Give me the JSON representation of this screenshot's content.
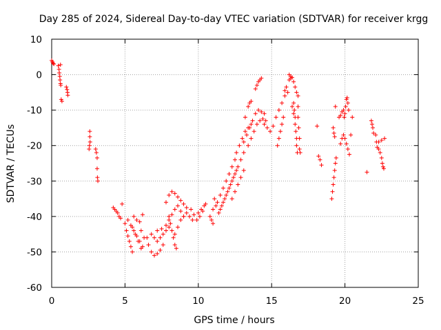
{
  "chart_data": {
    "type": "scatter",
    "title": "Day 285 of 2024, Sidereal Day-to-day VTEC variation (SDTVAR) for receiver krgg",
    "xlabel": "GPS time / hours",
    "ylabel": "SDTVAR / TECUs",
    "xlim": [
      0,
      25
    ],
    "ylim": [
      -60,
      10
    ],
    "xticks": [
      0,
      5,
      10,
      15,
      20,
      25
    ],
    "yticks": [
      10,
      0,
      -10,
      -20,
      -30,
      -40,
      -50,
      -60
    ],
    "xtick_labels": [
      "0",
      "5",
      "10",
      "15",
      "20",
      "25"
    ],
    "ytick_labels": [
      "10",
      "0",
      "-10",
      "-20",
      "-30",
      "-40",
      "-50",
      "-60"
    ],
    "grid": true,
    "marker": "+",
    "color": "#ff0000",
    "series": [
      {
        "name": "SDTVAR",
        "points": [
          [
            0.0,
            4.0
          ],
          [
            0.05,
            3.6
          ],
          [
            0.1,
            3.2
          ],
          [
            0.15,
            3.0
          ],
          [
            0.45,
            2.5
          ],
          [
            0.5,
            1.5
          ],
          [
            0.52,
            0.5
          ],
          [
            0.55,
            -0.5
          ],
          [
            0.57,
            -1.5
          ],
          [
            0.6,
            -2.5
          ],
          [
            0.62,
            -3.0
          ],
          [
            0.6,
            2.8
          ],
          [
            0.65,
            -7.0
          ],
          [
            0.7,
            -7.5
          ],
          [
            1.0,
            -3.5
          ],
          [
            1.05,
            -4.2
          ],
          [
            1.08,
            -5.0
          ],
          [
            1.1,
            -5.8
          ],
          [
            2.6,
            -16
          ],
          [
            2.6,
            -17.5
          ],
          [
            2.62,
            -19
          ],
          [
            2.58,
            -20
          ],
          [
            2.55,
            -21
          ],
          [
            3.0,
            -21.0
          ],
          [
            3.05,
            -22
          ],
          [
            3.1,
            -23.5
          ],
          [
            3.1,
            -26.5
          ],
          [
            3.12,
            -29
          ],
          [
            3.15,
            -30
          ],
          [
            4.2,
            -37.5
          ],
          [
            4.3,
            -38.0
          ],
          [
            4.4,
            -38.5
          ],
          [
            4.5,
            -39.0
          ],
          [
            4.6,
            -40.0
          ],
          [
            4.7,
            -40.5
          ],
          [
            4.8,
            -36.5
          ],
          [
            5.0,
            -42
          ],
          [
            5.1,
            -44
          ],
          [
            5.2,
            -45.5
          ],
          [
            5.3,
            -47
          ],
          [
            5.4,
            -48.5
          ],
          [
            5.5,
            -50
          ],
          [
            5.2,
            -41
          ],
          [
            5.4,
            -42.5
          ],
          [
            5.6,
            -44
          ],
          [
            5.8,
            -45.5
          ],
          [
            6.0,
            -47
          ],
          [
            6.2,
            -48.5
          ],
          [
            5.5,
            -43
          ],
          [
            5.7,
            -45
          ],
          [
            5.9,
            -47
          ],
          [
            6.1,
            -49
          ],
          [
            5.6,
            -40
          ],
          [
            5.8,
            -41
          ],
          [
            6.0,
            -41.5
          ],
          [
            6.2,
            -39.5
          ],
          [
            6.1,
            -44
          ],
          [
            6.3,
            -46
          ],
          [
            6.5,
            -46
          ],
          [
            6.6,
            -48
          ],
          [
            6.8,
            -50
          ],
          [
            7.0,
            -51
          ],
          [
            7.2,
            -50.5
          ],
          [
            7.4,
            -49.5
          ],
          [
            7.6,
            -48
          ],
          [
            6.8,
            -45
          ],
          [
            7.0,
            -46
          ],
          [
            7.2,
            -47
          ],
          [
            7.4,
            -46
          ],
          [
            7.6,
            -45
          ],
          [
            7.8,
            -44
          ],
          [
            8.0,
            -43
          ],
          [
            7.2,
            -44
          ],
          [
            7.5,
            -43.5
          ],
          [
            7.8,
            -42.5
          ],
          [
            8.0,
            -41
          ],
          [
            8.2,
            -39.5
          ],
          [
            8.4,
            -38
          ],
          [
            7.8,
            -36
          ],
          [
            8.0,
            -34
          ],
          [
            8.2,
            -33
          ],
          [
            8.4,
            -33.5
          ],
          [
            8.6,
            -34.5
          ],
          [
            8.8,
            -35.5
          ],
          [
            9.0,
            -36.5
          ],
          [
            9.2,
            -37.5
          ],
          [
            8.0,
            -40
          ],
          [
            8.1,
            -42
          ],
          [
            8.2,
            -44
          ],
          [
            8.3,
            -46
          ],
          [
            8.4,
            -48
          ],
          [
            8.5,
            -49
          ],
          [
            8.4,
            -45
          ],
          [
            8.6,
            -43
          ],
          [
            8.8,
            -41
          ],
          [
            9.0,
            -40
          ],
          [
            8.6,
            -37
          ],
          [
            8.8,
            -38.5
          ],
          [
            9.0,
            -40
          ],
          [
            9.2,
            -39
          ],
          [
            9.4,
            -40
          ],
          [
            9.6,
            -41
          ],
          [
            9.5,
            -38
          ],
          [
            9.7,
            -39.5
          ],
          [
            9.9,
            -41
          ],
          [
            10.1,
            -40
          ],
          [
            10.3,
            -38.5
          ],
          [
            10.0,
            -39
          ],
          [
            10.2,
            -38
          ],
          [
            10.4,
            -37
          ],
          [
            10.5,
            -36.5
          ],
          [
            10.8,
            -40
          ],
          [
            10.9,
            -41
          ],
          [
            11.0,
            -42
          ],
          [
            11.0,
            -38
          ],
          [
            11.2,
            -37
          ],
          [
            11.1,
            -35
          ],
          [
            11.3,
            -36
          ],
          [
            11.5,
            -34
          ],
          [
            11.7,
            -32
          ],
          [
            11.9,
            -30
          ],
          [
            12.1,
            -28
          ],
          [
            12.3,
            -26
          ],
          [
            12.5,
            -24
          ],
          [
            11.5,
            -38
          ],
          [
            11.7,
            -36
          ],
          [
            11.9,
            -34
          ],
          [
            12.1,
            -32
          ],
          [
            12.3,
            -30
          ],
          [
            12.5,
            -28
          ],
          [
            12.7,
            -26
          ],
          [
            12.9,
            -24
          ],
          [
            13.1,
            -22
          ],
          [
            11.4,
            -39
          ],
          [
            11.6,
            -37
          ],
          [
            11.8,
            -35
          ],
          [
            12.0,
            -33
          ],
          [
            12.2,
            -31
          ],
          [
            12.4,
            -29
          ],
          [
            12.6,
            -27
          ],
          [
            12.3,
            -35
          ],
          [
            12.5,
            -33
          ],
          [
            12.7,
            -31
          ],
          [
            12.9,
            -29
          ],
          [
            13.1,
            -27
          ],
          [
            12.6,
            -22
          ],
          [
            12.8,
            -20
          ],
          [
            13.0,
            -18
          ],
          [
            13.2,
            -16
          ],
          [
            13.4,
            -15
          ],
          [
            13.6,
            -14
          ],
          [
            13.1,
            -19
          ],
          [
            13.3,
            -17
          ],
          [
            13.5,
            -15
          ],
          [
            13.7,
            -13
          ],
          [
            13.9,
            -11
          ],
          [
            14.1,
            -10
          ],
          [
            14.3,
            -10.5
          ],
          [
            14.5,
            -11
          ],
          [
            13.4,
            -20
          ],
          [
            13.6,
            -18
          ],
          [
            13.8,
            -16
          ],
          [
            14.0,
            -14
          ],
          [
            14.2,
            -13
          ],
          [
            14.4,
            -12.5
          ],
          [
            14.6,
            -13
          ],
          [
            13.2,
            -12
          ],
          [
            13.4,
            -9
          ],
          [
            13.5,
            -8
          ],
          [
            13.6,
            -7.5
          ],
          [
            13.9,
            -4
          ],
          [
            14.0,
            -3
          ],
          [
            14.1,
            -2
          ],
          [
            14.2,
            -1.5
          ],
          [
            14.3,
            -1
          ],
          [
            14.5,
            -14
          ],
          [
            14.7,
            -15
          ],
          [
            14.9,
            -16
          ],
          [
            15.1,
            -14.5
          ],
          [
            15.3,
            -12
          ],
          [
            15.5,
            -10
          ],
          [
            15.7,
            -8
          ],
          [
            15.9,
            -6
          ],
          [
            16.1,
            -5
          ],
          [
            15.4,
            -20
          ],
          [
            15.5,
            -18
          ],
          [
            15.6,
            -16
          ],
          [
            15.7,
            -14
          ],
          [
            15.8,
            -12
          ],
          [
            15.9,
            -4.5
          ],
          [
            16.0,
            -3.5
          ],
          [
            16.2,
            -1.5
          ],
          [
            16.3,
            -1
          ],
          [
            16.5,
            -2
          ],
          [
            16.6,
            -3.5
          ],
          [
            16.7,
            -5
          ],
          [
            16.8,
            -6
          ],
          [
            16.2,
            0
          ],
          [
            16.3,
            -0.5
          ],
          [
            16.4,
            -0.8
          ],
          [
            16.5,
            -8
          ],
          [
            16.55,
            -10
          ],
          [
            16.6,
            -12
          ],
          [
            16.6,
            -14
          ],
          [
            16.65,
            -16
          ],
          [
            16.7,
            -18
          ],
          [
            16.7,
            -20
          ],
          [
            16.75,
            -22
          ],
          [
            16.8,
            -9
          ],
          [
            16.8,
            -12
          ],
          [
            16.85,
            -15
          ],
          [
            16.9,
            -18
          ],
          [
            16.9,
            -21
          ],
          [
            16.95,
            -22
          ],
          [
            16.4,
            -9
          ],
          [
            16.5,
            -11
          ],
          [
            18.1,
            -14.5
          ],
          [
            18.2,
            -23
          ],
          [
            18.3,
            -24
          ],
          [
            18.4,
            -25.5
          ],
          [
            19.1,
            -35
          ],
          [
            19.15,
            -33
          ],
          [
            19.2,
            -31
          ],
          [
            19.25,
            -29
          ],
          [
            19.3,
            -27
          ],
          [
            19.35,
            -25
          ],
          [
            19.4,
            -23.5
          ],
          [
            19.2,
            -15
          ],
          [
            19.25,
            -16.5
          ],
          [
            19.3,
            -17.5
          ],
          [
            19.35,
            -9
          ],
          [
            19.7,
            -19.5
          ],
          [
            19.8,
            -18
          ],
          [
            19.9,
            -17
          ],
          [
            20.0,
            -18
          ],
          [
            20.1,
            -19.5
          ],
          [
            20.2,
            -21
          ],
          [
            20.3,
            -22.5
          ],
          [
            19.9,
            -10
          ],
          [
            19.95,
            -12
          ],
          [
            20.0,
            -11
          ],
          [
            20.05,
            -9
          ],
          [
            20.1,
            -7
          ],
          [
            20.15,
            -6.5
          ],
          [
            20.2,
            -8
          ],
          [
            20.25,
            -10
          ],
          [
            19.6,
            -12
          ],
          [
            19.7,
            -11.5
          ],
          [
            19.8,
            -10.5
          ],
          [
            20.5,
            -12
          ],
          [
            20.4,
            -17
          ],
          [
            21.5,
            -27.5
          ],
          [
            21.8,
            -13
          ],
          [
            21.85,
            -14
          ],
          [
            21.9,
            -15
          ],
          [
            21.95,
            -16.5
          ],
          [
            22.1,
            -17
          ],
          [
            22.15,
            -19
          ],
          [
            22.2,
            -20.5
          ],
          [
            22.3,
            -21
          ],
          [
            22.4,
            -22
          ],
          [
            22.5,
            -23.5
          ],
          [
            22.55,
            -25
          ],
          [
            22.6,
            -26
          ],
          [
            22.65,
            -26.5
          ],
          [
            22.3,
            -19
          ],
          [
            22.5,
            -18.5
          ],
          [
            22.7,
            -18
          ]
        ]
      }
    ]
  }
}
